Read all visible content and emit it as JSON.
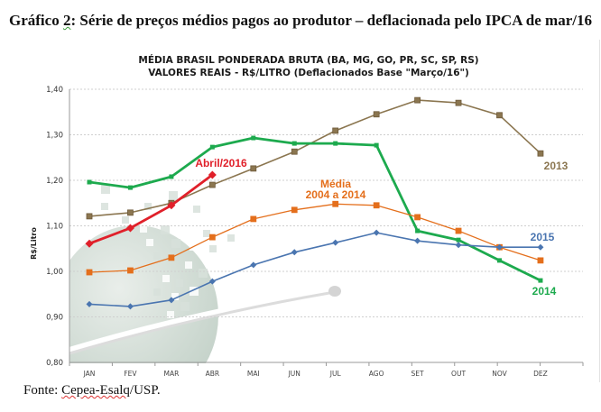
{
  "document": {
    "title_prefix": "Gráfico ",
    "title_number": "2",
    "title_rest": ": Série de preços médios pagos ao produtor – deflacionada pelo IPCA de mar/16",
    "source_prefix": "Fonte: ",
    "source_name": "Cepea-Esalq",
    "source_suffix": "/USP."
  },
  "chart_data": {
    "type": "line",
    "title": "MÉDIA BRASIL PONDERADA BRUTA (BA, MG, GO, PR, SC, SP, RS)",
    "subtitle": "VALORES REAIS - R$/LITRO (Deflacionados  Base \"Março/16\")",
    "xlabel": "",
    "ylabel": "R$/Litro",
    "ylim": [
      0.8,
      1.4
    ],
    "yticks": [
      0.8,
      0.9,
      1.0,
      1.1,
      1.2,
      1.3,
      1.4
    ],
    "ytick_labels": [
      "0,80",
      "0,90",
      "1,00",
      "1,10",
      "1,20",
      "1,30",
      "1,40"
    ],
    "grid": true,
    "legend": "inline labels at series ends",
    "categories": [
      "JAN",
      "FEV",
      "MAR",
      "ABR",
      "MAI",
      "JUN",
      "JUL",
      "AGO",
      "SET",
      "OUT",
      "NOV",
      "DEZ"
    ],
    "series": [
      {
        "name": "2013",
        "label": "2013",
        "color": "#8b7650",
        "marker": "square",
        "values": [
          1.121,
          1.129,
          1.15,
          1.19,
          1.226,
          1.263,
          1.309,
          1.345,
          1.376,
          1.37,
          1.343,
          1.259
        ]
      },
      {
        "name": "2014",
        "label": "2014",
        "color": "#1daa4e",
        "marker": "circle",
        "values": [
          1.196,
          1.184,
          1.208,
          1.273,
          1.293,
          1.281,
          1.281,
          1.277,
          1.089,
          1.069,
          1.024,
          0.98
        ]
      },
      {
        "name": "Média 2004 a 2014",
        "label": [
          "Média",
          "2004 a 2014"
        ],
        "color": "#e46f1c",
        "marker": "square",
        "values": [
          0.998,
          1.002,
          1.03,
          1.075,
          1.115,
          1.135,
          1.148,
          1.145,
          1.119,
          1.089,
          1.053,
          1.024
        ]
      },
      {
        "name": "2015",
        "label": "2015",
        "color": "#4a75b0",
        "marker": "diamond",
        "values": [
          0.928,
          0.923,
          0.937,
          0.978,
          1.014,
          1.042,
          1.063,
          1.085,
          1.067,
          1.058,
          1.053,
          1.053
        ]
      },
      {
        "name": "Abril/2016",
        "label": "Abril/2016",
        "color": "#e0202a",
        "marker": "diamond",
        "values": [
          1.061,
          1.095,
          1.145,
          1.212
        ]
      }
    ]
  }
}
